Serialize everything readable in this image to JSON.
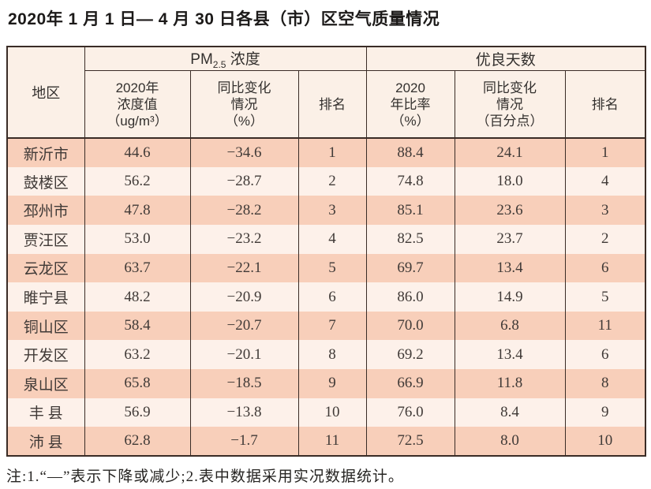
{
  "page": {
    "title": "2020年 1 月 1 日— 4 月 30 日各县（市）区空气质量情况",
    "note": "注:1.“—”表示下降或减少;2.表中数据采用实况数据统计。"
  },
  "table": {
    "corner_header": "地区",
    "groups": {
      "pm25": {
        "prefix": "PM",
        "sub": "2.5",
        "suffix": " 浓度"
      },
      "good_days": "优良天数"
    },
    "subheaders": {
      "pm_value": [
        "2020年",
        "浓度值",
        "（ug/m³）"
      ],
      "pm_change": [
        "同比变化",
        "情况",
        "（%）"
      ],
      "pm_rank": "排名",
      "gd_ratio": [
        "2020",
        "年比率",
        "（%）"
      ],
      "gd_change": [
        "同比变化",
        "情况",
        "（百分点）"
      ],
      "gd_rank": "排名"
    },
    "rows": [
      [
        "新沂市",
        "44.6",
        "−34.6",
        "1",
        "88.4",
        "24.1",
        "1"
      ],
      [
        "鼓楼区",
        "56.2",
        "−28.7",
        "2",
        "74.8",
        "18.0",
        "4"
      ],
      [
        "邳州市",
        "47.8",
        "−28.2",
        "3",
        "85.1",
        "23.6",
        "3"
      ],
      [
        "贾汪区",
        "53.0",
        "−23.2",
        "4",
        "82.5",
        "23.7",
        "2"
      ],
      [
        "云龙区",
        "63.7",
        "−22.1",
        "5",
        "69.7",
        "13.4",
        "6"
      ],
      [
        "睢宁县",
        "48.2",
        "−20.9",
        "6",
        "86.0",
        "14.9",
        "5"
      ],
      [
        "铜山区",
        "58.4",
        "−20.7",
        "7",
        "70.0",
        "6.8",
        "11"
      ],
      [
        "开发区",
        "63.2",
        "−20.1",
        "8",
        "69.2",
        "13.4",
        "6"
      ],
      [
        "泉山区",
        "65.8",
        "−18.5",
        "9",
        "66.9",
        "11.8",
        "8"
      ],
      [
        "丰 县",
        "56.9",
        "−13.8",
        "10",
        "76.0",
        "8.4",
        "9"
      ],
      [
        "沛 县",
        "62.8",
        "−1.7",
        "11",
        "72.5",
        "8.0",
        "10"
      ]
    ]
  },
  "colors": {
    "border": "#3a2c26",
    "row_odd": "#f8cfba",
    "row_even": "#fdf1ea",
    "header_bg": "#fbf0e7"
  }
}
